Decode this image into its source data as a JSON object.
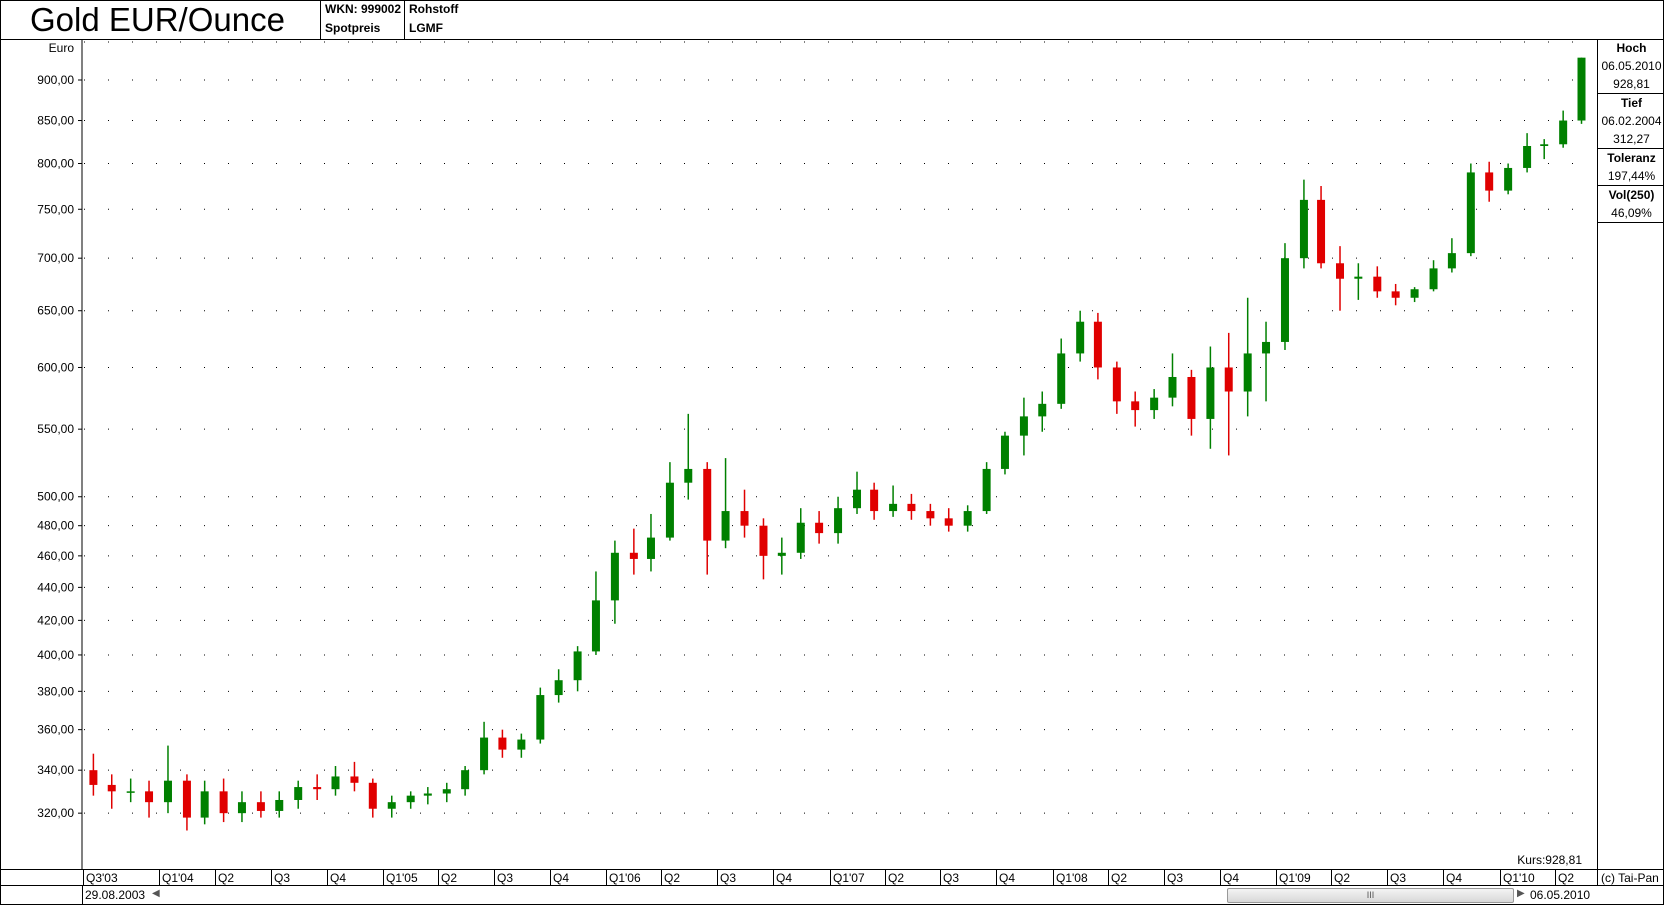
{
  "header": {
    "title": "Gold EUR/Ounce",
    "wkn": "WKN: 999002",
    "type": "Spotpreis",
    "category": "Rohstoff",
    "exchange": "LGMF"
  },
  "stats": {
    "high_label": "Hoch",
    "high_date": "06.05.2010",
    "high_value": "928,81",
    "low_label": "Tief",
    "low_date": "06.02.2004",
    "low_value": "312,27",
    "tolerance_label": "Toleranz",
    "tolerance_value": "197,44%",
    "vol_label": "Vol(250)",
    "vol_value": "46,09%"
  },
  "footer": {
    "start_date": "29.08.2003",
    "end_date": "06.05.2010",
    "copyright": "(c) Tai-Pan",
    "kurs": "Kurs:928,81",
    "scroll_grip": "III"
  },
  "colors": {
    "up": "#008000",
    "down": "#e00000",
    "grid": "#000000"
  },
  "chart_data": {
    "type": "candlestick",
    "ylabel": "Euro",
    "yscale": "log",
    "grid": "dotted",
    "xlim": [
      "2003-08-29",
      "2010-05-06"
    ],
    "ylim": [
      305,
      945
    ],
    "yticks": [
      320,
      340,
      360,
      380,
      400,
      420,
      440,
      460,
      480,
      500,
      550,
      600,
      650,
      700,
      750,
      800,
      850,
      900
    ],
    "ytick_labels": [
      "320,00",
      "340,00",
      "360,00",
      "380,00",
      "400,00",
      "420,00",
      "440,00",
      "460,00",
      "480,00",
      "500,00",
      "550,00",
      "600,00",
      "650,00",
      "700,00",
      "750,00",
      "800,00",
      "850,00",
      "900,00"
    ],
    "xticks": [
      {
        "label": "Q3'03",
        "date": "2003-08-29"
      },
      {
        "label": "Q1'04",
        "date": "2004-01-01"
      },
      {
        "label": "Q2",
        "date": "2004-04-01"
      },
      {
        "label": "Q3",
        "date": "2004-07-01"
      },
      {
        "label": "Q4",
        "date": "2004-10-01"
      },
      {
        "label": "Q1'05",
        "date": "2005-01-01"
      },
      {
        "label": "Q2",
        "date": "2005-04-01"
      },
      {
        "label": "Q3",
        "date": "2005-07-01"
      },
      {
        "label": "Q4",
        "date": "2005-10-01"
      },
      {
        "label": "Q1'06",
        "date": "2006-01-01"
      },
      {
        "label": "Q2",
        "date": "2006-04-01"
      },
      {
        "label": "Q3",
        "date": "2006-07-01"
      },
      {
        "label": "Q4",
        "date": "2006-10-01"
      },
      {
        "label": "Q1'07",
        "date": "2007-01-01"
      },
      {
        "label": "Q2",
        "date": "2007-04-01"
      },
      {
        "label": "Q3",
        "date": "2007-07-01"
      },
      {
        "label": "Q4",
        "date": "2007-10-01"
      },
      {
        "label": "Q1'08",
        "date": "2008-01-01"
      },
      {
        "label": "Q2",
        "date": "2008-04-01"
      },
      {
        "label": "Q3",
        "date": "2008-07-01"
      },
      {
        "label": "Q4",
        "date": "2008-10-01"
      },
      {
        "label": "Q1'09",
        "date": "2009-01-01"
      },
      {
        "label": "Q2",
        "date": "2009-04-01"
      },
      {
        "label": "Q3",
        "date": "2009-07-01"
      },
      {
        "label": "Q4",
        "date": "2009-10-01"
      },
      {
        "label": "Q1'10",
        "date": "2010-01-01"
      },
      {
        "label": "Q2",
        "date": "2010-04-01"
      }
    ],
    "ohlc_columns": [
      "month",
      "open",
      "high",
      "low",
      "close"
    ],
    "ohlc": [
      [
        "2003-09",
        340,
        348,
        328,
        333
      ],
      [
        "2003-10",
        333,
        338,
        322,
        330
      ],
      [
        "2003-11",
        330,
        336,
        325,
        330
      ],
      [
        "2003-12",
        330,
        335,
        318,
        325
      ],
      [
        "2004-01",
        325,
        352,
        320,
        335
      ],
      [
        "2004-02",
        335,
        338,
        312.27,
        318
      ],
      [
        "2004-03",
        318,
        335,
        315,
        330
      ],
      [
        "2004-04",
        330,
        336,
        316,
        320
      ],
      [
        "2004-05",
        320,
        330,
        316,
        325
      ],
      [
        "2004-06",
        325,
        330,
        318,
        321
      ],
      [
        "2004-07",
        321,
        330,
        318,
        326
      ],
      [
        "2004-08",
        326,
        335,
        322,
        332
      ],
      [
        "2004-09",
        332,
        338,
        326,
        331
      ],
      [
        "2004-10",
        331,
        342,
        328,
        337
      ],
      [
        "2004-11",
        337,
        344,
        330,
        334
      ],
      [
        "2004-12",
        334,
        336,
        318,
        322
      ],
      [
        "2005-01",
        322,
        328,
        318,
        325
      ],
      [
        "2005-02",
        325,
        330,
        322,
        328
      ],
      [
        "2005-03",
        328,
        332,
        324,
        329
      ],
      [
        "2005-04",
        329,
        334,
        325,
        331
      ],
      [
        "2005-05",
        331,
        342,
        328,
        340
      ],
      [
        "2005-06",
        340,
        364,
        338,
        356
      ],
      [
        "2005-07",
        356,
        360,
        346,
        350
      ],
      [
        "2005-08",
        350,
        358,
        346,
        355
      ],
      [
        "2005-09",
        355,
        382,
        353,
        378
      ],
      [
        "2005-10",
        378,
        392,
        374,
        386
      ],
      [
        "2005-11",
        386,
        405,
        380,
        402
      ],
      [
        "2005-12",
        402,
        450,
        400,
        432
      ],
      [
        "2006-01",
        432,
        470,
        418,
        462
      ],
      [
        "2006-02",
        462,
        478,
        448,
        458
      ],
      [
        "2006-03",
        458,
        488,
        450,
        472
      ],
      [
        "2006-04",
        472,
        525,
        470,
        510
      ],
      [
        "2006-05",
        510,
        562,
        498,
        520
      ],
      [
        "2006-06",
        520,
        525,
        448,
        470
      ],
      [
        "2006-07",
        470,
        528,
        465,
        490
      ],
      [
        "2006-08",
        490,
        505,
        472,
        480
      ],
      [
        "2006-09",
        480,
        485,
        445,
        460
      ],
      [
        "2006-10",
        460,
        472,
        448,
        462
      ],
      [
        "2006-11",
        462,
        492,
        458,
        482
      ],
      [
        "2006-12",
        482,
        490,
        468,
        475
      ],
      [
        "2007-01",
        475,
        500,
        468,
        492
      ],
      [
        "2007-02",
        492,
        518,
        488,
        505
      ],
      [
        "2007-03",
        505,
        510,
        484,
        490
      ],
      [
        "2007-04",
        490,
        508,
        486,
        495
      ],
      [
        "2007-05",
        495,
        502,
        484,
        490
      ],
      [
        "2007-06",
        490,
        495,
        480,
        485
      ],
      [
        "2007-07",
        485,
        492,
        476,
        480
      ],
      [
        "2007-08",
        480,
        494,
        476,
        490
      ],
      [
        "2007-09",
        490,
        525,
        488,
        520
      ],
      [
        "2007-10",
        520,
        548,
        516,
        545
      ],
      [
        "2007-11",
        545,
        575,
        530,
        560
      ],
      [
        "2007-12",
        560,
        580,
        548,
        570
      ],
      [
        "2008-01",
        570,
        625,
        566,
        612
      ],
      [
        "2008-02",
        612,
        650,
        605,
        640
      ],
      [
        "2008-03",
        640,
        648,
        590,
        600
      ],
      [
        "2008-04",
        600,
        605,
        562,
        572
      ],
      [
        "2008-05",
        572,
        580,
        552,
        565
      ],
      [
        "2008-06",
        565,
        582,
        558,
        575
      ],
      [
        "2008-07",
        575,
        612,
        568,
        592
      ],
      [
        "2008-08",
        592,
        598,
        545,
        558
      ],
      [
        "2008-09",
        558,
        618,
        535,
        600
      ],
      [
        "2008-10",
        600,
        630,
        530,
        580
      ],
      [
        "2008-11",
        580,
        662,
        560,
        612
      ],
      [
        "2008-12",
        612,
        640,
        572,
        622
      ],
      [
        "2009-01",
        622,
        715,
        615,
        700
      ],
      [
        "2009-02",
        700,
        782,
        690,
        760
      ],
      [
        "2009-03",
        760,
        775,
        690,
        695
      ],
      [
        "2009-04",
        695,
        712,
        650,
        680
      ],
      [
        "2009-05",
        680,
        695,
        660,
        682
      ],
      [
        "2009-06",
        682,
        692,
        662,
        668
      ],
      [
        "2009-07",
        668,
        675,
        655,
        662
      ],
      [
        "2009-08",
        662,
        672,
        658,
        670
      ],
      [
        "2009-09",
        670,
        698,
        668,
        690
      ],
      [
        "2009-10",
        690,
        720,
        686,
        705
      ],
      [
        "2009-11",
        705,
        800,
        702,
        790
      ],
      [
        "2009-12",
        790,
        802,
        758,
        770
      ],
      [
        "2010-01",
        770,
        800,
        766,
        795
      ],
      [
        "2010-02",
        795,
        835,
        790,
        820
      ],
      [
        "2010-03",
        820,
        828,
        805,
        822
      ],
      [
        "2010-04",
        822,
        862,
        818,
        850
      ],
      [
        "2010-05",
        850,
        928.81,
        846,
        928.81
      ]
    ]
  }
}
